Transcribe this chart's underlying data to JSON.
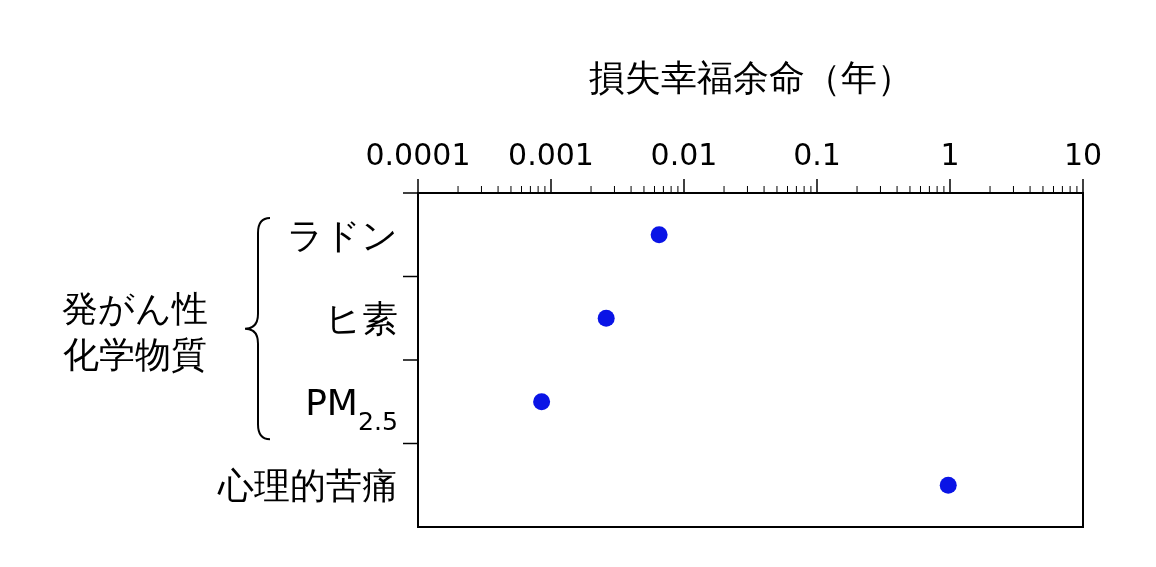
{
  "chart_data": {
    "type": "scatter",
    "orientation": "horizontal",
    "xlabel": "損失幸福余命（年）",
    "categories": [
      "ラドン",
      "ヒ素",
      "PM$_{2.5}$",
      "心理的苦痛"
    ],
    "values": [
      0.0065,
      0.0026,
      0.00085,
      0.97
    ],
    "color": "#0a14e6",
    "marker": "circle",
    "log": "x",
    "xlim": [
      0.0001,
      10
    ],
    "xticks": [
      {
        "value": 0.0001,
        "label": "0.0001"
      },
      {
        "value": 0.001,
        "label": "0.001"
      },
      {
        "value": 0.01,
        "label": "0.01"
      },
      {
        "value": 0.1,
        "label": "0.1"
      },
      {
        "value": 1,
        "label": "1"
      },
      {
        "value": 10,
        "label": "10"
      }
    ],
    "annotations": [
      "発がん性化学物質"
    ]
  }
}
